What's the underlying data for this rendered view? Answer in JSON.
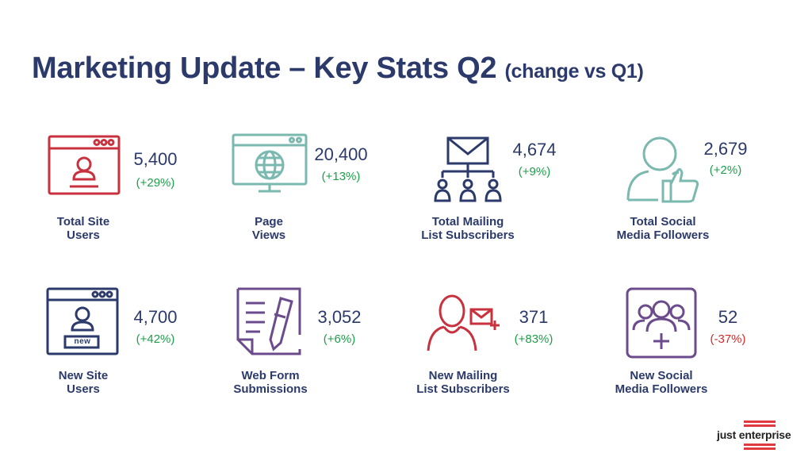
{
  "title": "Marketing Update – Key Stats Q2",
  "title_sub": "(change vs Q1)",
  "colors": {
    "navy": "#2b3a6b",
    "positive": "#1e9e4a",
    "negative": "#d42a2a",
    "red_icon": "#c8323e",
    "teal_icon": "#7ab8b0",
    "purple_icon": "#6b4b8c"
  },
  "stats": [
    {
      "id": "total-site-users",
      "value": "5,400",
      "change": "(+29%)",
      "label1": "Total Site",
      "label2": "Users",
      "icon": "user-browser-icon"
    },
    {
      "id": "page-views",
      "value": "20,400",
      "change": "(+13%)",
      "label1": "Page",
      "label2": "Views",
      "icon": "globe-monitor-icon"
    },
    {
      "id": "total-mailing-list-subscribers",
      "value": "4,674",
      "change": "(+9%)",
      "label1": "Total Mailing",
      "label2": "List Subscribers",
      "icon": "mail-network-icon"
    },
    {
      "id": "total-social-media-followers",
      "value": "2,679",
      "change": "(+2%)",
      "label1": "Total Social",
      "label2": "Media Followers",
      "icon": "user-thumbs-up-icon"
    },
    {
      "id": "new-site-users",
      "value": "4,700",
      "change": "(+42%)",
      "label1": "New Site",
      "label2": "Users",
      "icon": "new-user-browser-icon",
      "icon_badge": "new"
    },
    {
      "id": "web-form-submissions",
      "value": "3,052",
      "change": "(+6%)",
      "label1": "Web Form",
      "label2": "Submissions",
      "icon": "form-pencil-icon"
    },
    {
      "id": "new-mailing-list-subscribers",
      "value": "371",
      "change": "(+83%)",
      "label1": "New Mailing",
      "label2": "List Subscribers",
      "icon": "person-mail-plus-icon"
    },
    {
      "id": "new-social-media-followers",
      "value": "52",
      "change": "(-37%)",
      "label1": "New Social",
      "label2": "Media Followers",
      "icon": "group-add-icon"
    }
  ],
  "logo": {
    "text": "just enterprise"
  }
}
